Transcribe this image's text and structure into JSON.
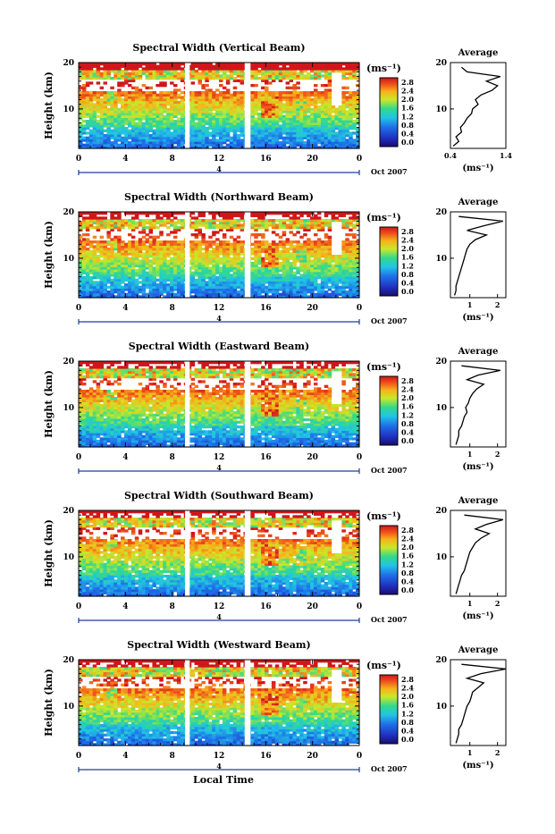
{
  "figure": {
    "x_axis_title": "Local Time",
    "avg_title": "Average",
    "unit_label": "(ms⁻¹)",
    "date_label": "Oct 2007",
    "day_marker": "4",
    "colorbar_ticks": [
      "2.8",
      "2.4",
      "2.0",
      "1.6",
      "1.2",
      "0.8",
      "0.4",
      "0.0"
    ]
  },
  "chart_data": [
    {
      "type": "heatmap",
      "title": "Spectral Width (Vertical Beam)",
      "ylabel": "Height (km)",
      "xlabel": "Local Time",
      "x_ticks": [
        "0",
        "4",
        "8",
        "12",
        "16",
        "20",
        "0"
      ],
      "y_ticks": [
        "20",
        "10"
      ],
      "ylim": [
        1.5,
        20
      ],
      "colorbar": {
        "label": "(ms⁻¹)",
        "range": [
          0.0,
          3.0
        ]
      },
      "average_profile": {
        "title": "Average",
        "xlabel": "(ms⁻¹)",
        "x_ticks": [
          "0.4",
          "1.4"
        ],
        "xlim": [
          0.4,
          1.4
        ],
        "y_ticks": [
          "20",
          "10"
        ],
        "heights": [
          2,
          3,
          4,
          5,
          6,
          7,
          8,
          9,
          10,
          11,
          12,
          13,
          14,
          15,
          16,
          17,
          18,
          19
        ],
        "values": [
          0.45,
          0.55,
          0.5,
          0.6,
          0.58,
          0.65,
          0.7,
          0.78,
          0.8,
          0.9,
          0.85,
          0.95,
          1.15,
          1.25,
          1.05,
          1.3,
          0.7,
          0.6
        ]
      }
    },
    {
      "type": "heatmap",
      "title": "Spectral Width (Northward Beam)",
      "ylabel": "Height (km)",
      "xlabel": "Local Time",
      "x_ticks": [
        "0",
        "4",
        "8",
        "12",
        "16",
        "20",
        "0"
      ],
      "y_ticks": [
        "20",
        "10"
      ],
      "ylim": [
        1.5,
        20
      ],
      "colorbar": {
        "label": "(ms⁻¹)",
        "range": [
          0.0,
          3.0
        ]
      },
      "average_profile": {
        "title": "Average",
        "xlabel": "(ms⁻¹)",
        "x_ticks": [
          "1",
          "2"
        ],
        "xlim": [
          0.3,
          2.3
        ],
        "y_ticks": [
          "20",
          "10"
        ],
        "heights": [
          2,
          3,
          4,
          5,
          6,
          7,
          8,
          9,
          10,
          11,
          12,
          13,
          14,
          15,
          16,
          17,
          18,
          19
        ],
        "values": [
          0.45,
          0.5,
          0.5,
          0.55,
          0.6,
          0.65,
          0.7,
          0.75,
          0.8,
          0.85,
          0.9,
          1.0,
          1.2,
          1.6,
          0.9,
          1.5,
          2.2,
          0.6
        ]
      }
    },
    {
      "type": "heatmap",
      "title": "Spectral Width (Eastward Beam)",
      "ylabel": "Height (km)",
      "xlabel": "Local Time",
      "x_ticks": [
        "0",
        "4",
        "8",
        "12",
        "16",
        "20",
        "0"
      ],
      "y_ticks": [
        "20",
        "10"
      ],
      "ylim": [
        1.5,
        20
      ],
      "colorbar": {
        "label": "(ms⁻¹)",
        "range": [
          0.0,
          3.0
        ]
      },
      "average_profile": {
        "title": "Average",
        "xlabel": "(ms⁻¹)",
        "x_ticks": [
          "1",
          "2"
        ],
        "xlim": [
          0.3,
          2.3
        ],
        "y_ticks": [
          "20",
          "10"
        ],
        "heights": [
          2,
          3,
          4,
          5,
          6,
          7,
          8,
          9,
          10,
          11,
          12,
          13,
          14,
          15,
          16,
          17,
          18,
          19
        ],
        "values": [
          0.5,
          0.55,
          0.6,
          0.6,
          0.7,
          0.75,
          0.8,
          0.9,
          0.85,
          0.95,
          1.0,
          1.1,
          1.25,
          1.5,
          0.9,
          1.3,
          2.1,
          0.7
        ]
      }
    },
    {
      "type": "heatmap",
      "title": "Spectral Width (Southward Beam)",
      "ylabel": "Height (km)",
      "xlabel": "Local Time",
      "x_ticks": [
        "0",
        "4",
        "8",
        "12",
        "16",
        "20",
        "0"
      ],
      "y_ticks": [
        "20",
        "10"
      ],
      "ylim": [
        1.5,
        20
      ],
      "colorbar": {
        "label": "(ms⁻¹)",
        "range": [
          0.0,
          3.0
        ]
      },
      "average_profile": {
        "title": "Average",
        "xlabel": "(ms⁻¹)",
        "x_ticks": [
          "1",
          "2"
        ],
        "xlim": [
          0.3,
          2.3
        ],
        "y_ticks": [
          "20",
          "10"
        ],
        "heights": [
          2,
          3,
          4,
          5,
          6,
          7,
          8,
          9,
          10,
          11,
          12,
          13,
          14,
          15,
          16,
          17,
          18,
          19
        ],
        "values": [
          0.5,
          0.55,
          0.6,
          0.65,
          0.7,
          0.8,
          0.85,
          0.9,
          0.95,
          1.0,
          1.1,
          1.2,
          1.4,
          1.7,
          1.2,
          1.6,
          2.2,
          0.8
        ]
      }
    },
    {
      "type": "heatmap",
      "title": "Spectral Width (Westward Beam)",
      "ylabel": "Height (km)",
      "xlabel": "Local Time",
      "x_ticks": [
        "0",
        "4",
        "8",
        "12",
        "16",
        "20",
        "0"
      ],
      "y_ticks": [
        "20",
        "10"
      ],
      "ylim": [
        1.5,
        20
      ],
      "colorbar": {
        "label": "(ms⁻¹)",
        "range": [
          0.0,
          3.0
        ]
      },
      "average_profile": {
        "title": "Average",
        "xlabel": "(ms⁻¹)",
        "x_ticks": [
          "1",
          "2"
        ],
        "xlim": [
          0.3,
          2.3
        ],
        "y_ticks": [
          "20",
          "10"
        ],
        "heights": [
          2,
          3,
          4,
          5,
          6,
          7,
          8,
          9,
          10,
          11,
          12,
          13,
          14,
          15,
          16,
          17,
          18,
          19
        ],
        "values": [
          0.5,
          0.55,
          0.6,
          0.6,
          0.7,
          0.75,
          0.8,
          0.85,
          0.9,
          1.0,
          1.05,
          1.1,
          1.3,
          1.5,
          0.9,
          1.4,
          2.3,
          0.7
        ]
      }
    }
  ]
}
